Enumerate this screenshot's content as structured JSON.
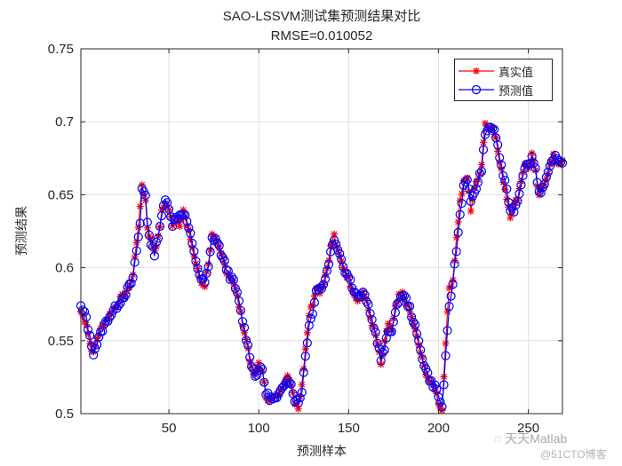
{
  "figure": {
    "title_line1": "SAO-LSSVM测试集预测结果对比",
    "title_line2": "RMSE=0.010052",
    "xlabel": "预测样本",
    "ylabel": "预测结果",
    "legend": [
      {
        "label": "真实值",
        "color": "#ff0000",
        "marker": "asterisk"
      },
      {
        "label": "预测值",
        "color": "#0000ff",
        "marker": "circle"
      }
    ],
    "watermark": {
      "line1": "天天Matlab",
      "line2": "@51CTO博客",
      "icon": "wechat-icon"
    }
  },
  "chart_data": {
    "type": "line",
    "title": "SAO-LSSVM测试集预测结果对比 RMSE=0.010052",
    "xlabel": "预测样本",
    "ylabel": "预测结果",
    "xlim": [
      1,
      269
    ],
    "ylim": [
      0.5,
      0.75
    ],
    "xticks": [
      50,
      100,
      150,
      200,
      250
    ],
    "yticks": [
      0.5,
      0.55,
      0.6,
      0.65,
      0.7,
      0.75
    ],
    "ytick_labels": [
      "0.5",
      "0.55",
      "0.6",
      "0.65",
      "0.7",
      "0.75"
    ],
    "grid": true,
    "legend_position": "northeast",
    "anchors_true": [
      [
        1,
        0.57
      ],
      [
        4,
        0.562
      ],
      [
        6,
        0.548
      ],
      [
        8,
        0.541
      ],
      [
        10,
        0.552
      ],
      [
        13,
        0.56
      ],
      [
        16,
        0.566
      ],
      [
        20,
        0.573
      ],
      [
        24,
        0.58
      ],
      [
        27,
        0.584
      ],
      [
        30,
        0.595
      ],
      [
        32,
        0.618
      ],
      [
        34,
        0.64
      ],
      [
        35,
        0.657
      ],
      [
        37,
        0.646
      ],
      [
        38,
        0.628
      ],
      [
        40,
        0.618
      ],
      [
        42,
        0.612
      ],
      [
        44,
        0.62
      ],
      [
        46,
        0.638
      ],
      [
        48,
        0.645
      ],
      [
        50,
        0.64
      ],
      [
        52,
        0.628
      ],
      [
        54,
        0.636
      ],
      [
        56,
        0.63
      ],
      [
        58,
        0.64
      ],
      [
        60,
        0.628
      ],
      [
        62,
        0.62
      ],
      [
        64,
        0.608
      ],
      [
        66,
        0.598
      ],
      [
        68,
        0.59
      ],
      [
        70,
        0.588
      ],
      [
        72,
        0.604
      ],
      [
        74,
        0.622
      ],
      [
        76,
        0.618
      ],
      [
        78,
        0.612
      ],
      [
        80,
        0.606
      ],
      [
        82,
        0.598
      ],
      [
        84,
        0.594
      ],
      [
        86,
        0.59
      ],
      [
        88,
        0.58
      ],
      [
        90,
        0.568
      ],
      [
        92,
        0.556
      ],
      [
        94,
        0.545
      ],
      [
        96,
        0.53
      ],
      [
        98,
        0.525
      ],
      [
        100,
        0.535
      ],
      [
        102,
        0.528
      ],
      [
        104,
        0.512
      ],
      [
        106,
        0.51
      ],
      [
        108,
        0.51
      ],
      [
        110,
        0.512
      ],
      [
        112,
        0.515
      ],
      [
        114,
        0.522
      ],
      [
        116,
        0.528
      ],
      [
        118,
        0.518
      ],
      [
        120,
        0.508
      ],
      [
        122,
        0.505
      ],
      [
        124,
        0.52
      ],
      [
        126,
        0.545
      ],
      [
        128,
        0.568
      ],
      [
        130,
        0.576
      ],
      [
        132,
        0.588
      ],
      [
        134,
        0.584
      ],
      [
        136,
        0.59
      ],
      [
        138,
        0.6
      ],
      [
        140,
        0.614
      ],
      [
        142,
        0.622
      ],
      [
        144,
        0.61
      ],
      [
        146,
        0.604
      ],
      [
        148,
        0.598
      ],
      [
        150,
        0.592
      ],
      [
        152,
        0.586
      ],
      [
        154,
        0.58
      ],
      [
        156,
        0.578
      ],
      [
        158,
        0.584
      ],
      [
        160,
        0.576
      ],
      [
        162,
        0.566
      ],
      [
        164,
        0.558
      ],
      [
        166,
        0.548
      ],
      [
        168,
        0.533
      ],
      [
        170,
        0.548
      ],
      [
        172,
        0.562
      ],
      [
        174,
        0.556
      ],
      [
        176,
        0.572
      ],
      [
        178,
        0.58
      ],
      [
        180,
        0.582
      ],
      [
        182,
        0.576
      ],
      [
        184,
        0.57
      ],
      [
        186,
        0.562
      ],
      [
        188,
        0.552
      ],
      [
        190,
        0.542
      ],
      [
        192,
        0.532
      ],
      [
        194,
        0.525
      ],
      [
        196,
        0.52
      ],
      [
        198,
        0.518
      ],
      [
        200,
        0.508
      ],
      [
        202,
        0.502
      ],
      [
        204,
        0.55
      ],
      [
        206,
        0.586
      ],
      [
        208,
        0.592
      ],
      [
        210,
        0.62
      ],
      [
        212,
        0.645
      ],
      [
        214,
        0.658
      ],
      [
        216,
        0.662
      ],
      [
        218,
        0.64
      ],
      [
        220,
        0.655
      ],
      [
        222,
        0.66
      ],
      [
        224,
        0.672
      ],
      [
        226,
        0.7
      ],
      [
        228,
        0.695
      ],
      [
        230,
        0.698
      ],
      [
        232,
        0.688
      ],
      [
        234,
        0.672
      ],
      [
        236,
        0.66
      ],
      [
        238,
        0.648
      ],
      [
        240,
        0.636
      ],
      [
        242,
        0.642
      ],
      [
        244,
        0.648
      ],
      [
        246,
        0.66
      ],
      [
        248,
        0.672
      ],
      [
        250,
        0.668
      ],
      [
        252,
        0.678
      ],
      [
        254,
        0.665
      ],
      [
        256,
        0.648
      ],
      [
        258,
        0.656
      ],
      [
        260,
        0.662
      ],
      [
        262,
        0.67
      ],
      [
        264,
        0.676
      ],
      [
        266,
        0.672
      ],
      [
        269,
        0.672
      ]
    ],
    "anchors_pred": [
      [
        1,
        0.573
      ],
      [
        4,
        0.566
      ],
      [
        6,
        0.552
      ],
      [
        8,
        0.542
      ],
      [
        10,
        0.548
      ],
      [
        13,
        0.558
      ],
      [
        16,
        0.565
      ],
      [
        20,
        0.572
      ],
      [
        24,
        0.579
      ],
      [
        27,
        0.585
      ],
      [
        30,
        0.592
      ],
      [
        32,
        0.612
      ],
      [
        34,
        0.63
      ],
      [
        35,
        0.654
      ],
      [
        37,
        0.65
      ],
      [
        38,
        0.632
      ],
      [
        40,
        0.615
      ],
      [
        42,
        0.61
      ],
      [
        44,
        0.622
      ],
      [
        46,
        0.636
      ],
      [
        48,
        0.646
      ],
      [
        50,
        0.642
      ],
      [
        52,
        0.63
      ],
      [
        54,
        0.634
      ],
      [
        56,
        0.636
      ],
      [
        58,
        0.638
      ],
      [
        60,
        0.632
      ],
      [
        62,
        0.622
      ],
      [
        64,
        0.61
      ],
      [
        66,
        0.6
      ],
      [
        68,
        0.592
      ],
      [
        70,
        0.59
      ],
      [
        72,
        0.6
      ],
      [
        74,
        0.62
      ],
      [
        76,
        0.62
      ],
      [
        78,
        0.614
      ],
      [
        80,
        0.606
      ],
      [
        82,
        0.6
      ],
      [
        84,
        0.594
      ],
      [
        86,
        0.59
      ],
      [
        88,
        0.582
      ],
      [
        90,
        0.57
      ],
      [
        92,
        0.558
      ],
      [
        94,
        0.546
      ],
      [
        96,
        0.534
      ],
      [
        98,
        0.526
      ],
      [
        100,
        0.53
      ],
      [
        102,
        0.53
      ],
      [
        104,
        0.514
      ],
      [
        106,
        0.511
      ],
      [
        108,
        0.51
      ],
      [
        110,
        0.51
      ],
      [
        112,
        0.514
      ],
      [
        114,
        0.52
      ],
      [
        116,
        0.525
      ],
      [
        118,
        0.52
      ],
      [
        120,
        0.51
      ],
      [
        122,
        0.507
      ],
      [
        124,
        0.516
      ],
      [
        126,
        0.54
      ],
      [
        128,
        0.56
      ],
      [
        130,
        0.57
      ],
      [
        132,
        0.585
      ],
      [
        134,
        0.586
      ],
      [
        136,
        0.588
      ],
      [
        138,
        0.598
      ],
      [
        140,
        0.61
      ],
      [
        142,
        0.62
      ],
      [
        144,
        0.614
      ],
      [
        146,
        0.606
      ],
      [
        148,
        0.598
      ],
      [
        150,
        0.594
      ],
      [
        152,
        0.588
      ],
      [
        154,
        0.582
      ],
      [
        156,
        0.58
      ],
      [
        158,
        0.582
      ],
      [
        160,
        0.578
      ],
      [
        162,
        0.568
      ],
      [
        164,
        0.56
      ],
      [
        166,
        0.55
      ],
      [
        168,
        0.537
      ],
      [
        170,
        0.544
      ],
      [
        172,
        0.556
      ],
      [
        174,
        0.558
      ],
      [
        176,
        0.568
      ],
      [
        178,
        0.578
      ],
      [
        180,
        0.582
      ],
      [
        182,
        0.578
      ],
      [
        184,
        0.572
      ],
      [
        186,
        0.564
      ],
      [
        188,
        0.554
      ],
      [
        190,
        0.544
      ],
      [
        192,
        0.534
      ],
      [
        194,
        0.527
      ],
      [
        196,
        0.521
      ],
      [
        198,
        0.519
      ],
      [
        200,
        0.512
      ],
      [
        202,
        0.504
      ],
      [
        204,
        0.538
      ],
      [
        206,
        0.572
      ],
      [
        208,
        0.59
      ],
      [
        210,
        0.612
      ],
      [
        212,
        0.636
      ],
      [
        214,
        0.656
      ],
      [
        216,
        0.662
      ],
      [
        218,
        0.644
      ],
      [
        220,
        0.652
      ],
      [
        222,
        0.658
      ],
      [
        224,
        0.668
      ],
      [
        226,
        0.69
      ],
      [
        228,
        0.697
      ],
      [
        230,
        0.696
      ],
      [
        232,
        0.69
      ],
      [
        234,
        0.676
      ],
      [
        236,
        0.664
      ],
      [
        238,
        0.652
      ],
      [
        240,
        0.64
      ],
      [
        242,
        0.64
      ],
      [
        244,
        0.646
      ],
      [
        246,
        0.658
      ],
      [
        248,
        0.67
      ],
      [
        250,
        0.67
      ],
      [
        252,
        0.676
      ],
      [
        254,
        0.668
      ],
      [
        256,
        0.652
      ],
      [
        258,
        0.654
      ],
      [
        260,
        0.66
      ],
      [
        262,
        0.668
      ],
      [
        264,
        0.676
      ],
      [
        266,
        0.674
      ],
      [
        269,
        0.673
      ]
    ]
  }
}
